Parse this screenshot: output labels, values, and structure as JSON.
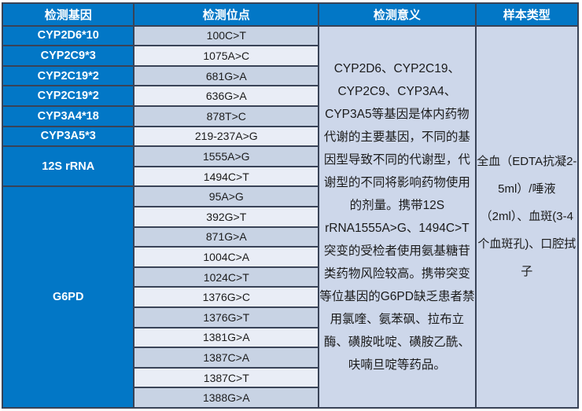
{
  "table": {
    "headers": [
      "检测基因",
      "检测位点",
      "检测意义",
      "样本类型"
    ],
    "gene_groups": [
      {
        "gene": "CYP2D6*10",
        "sites": [
          "100C>T"
        ]
      },
      {
        "gene": "CYP2C9*3",
        "sites": [
          "1075A>C"
        ]
      },
      {
        "gene": "CYP2C19*2",
        "sites": [
          "681G>A"
        ]
      },
      {
        "gene": "CYP2C19*2",
        "sites": [
          "636G>A"
        ]
      },
      {
        "gene": "CYP3A4*18",
        "sites": [
          "878T>C"
        ]
      },
      {
        "gene": "CYP3A5*3",
        "sites": [
          "219-237A>G"
        ]
      },
      {
        "gene": "12S rRNA",
        "sites": [
          "1555A>G",
          "1494C>T"
        ]
      },
      {
        "gene": "G6PD",
        "sites": [
          "95A>G",
          "392G>T",
          "871G>A",
          "1004C>A",
          "1024C>T",
          "1376G>C",
          "1376G>T",
          "1381G>A",
          "1387C>A",
          "1387C>T",
          "1388G>A"
        ]
      }
    ],
    "significance": "CYP2D6、CYP2C19、CYP2C9、CYP3A4、CYP3A5等基因是体内药物代谢的主要基因，不同的基因型导致不同的代谢型，代谢型的不同将影响药物使用的剂量。携带12S rRNA1555A>G、1494C>T突变的受检者使用氨基糖苷类药物风险较高。携带突变等位基因的G6PD缺乏患者禁用氯喹、氨苯砜、拉布立酶、磺胺吡啶、磺胺乙酰、呋喃旦啶等药品。",
    "sample_type": "全血（EDTA抗凝2-5ml）/唾液（2ml）、血斑(3-4个血斑孔)、口腔拭子"
  },
  "colors": {
    "header_bg": "#0277c6",
    "gene_cell_bg": "#0277c6",
    "site_row_dark": "#c8d3e4",
    "site_row_light": "#e9edf6",
    "merged_panel_bg": "#cdd7ea",
    "border": "#394357",
    "header_text": "#ffffff",
    "cell_text": "#1b1b1b"
  }
}
